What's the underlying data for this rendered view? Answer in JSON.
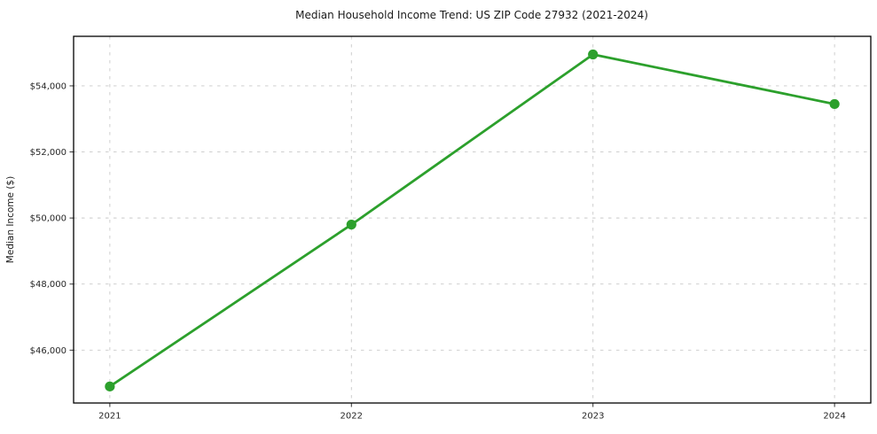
{
  "chart_data": {
    "type": "line",
    "title": "Median Household Income Trend: US ZIP Code 27932 (2021-2024)",
    "xlabel": "",
    "ylabel": "Median Income ($)",
    "categories": [
      "2021",
      "2022",
      "2023",
      "2024"
    ],
    "series": [
      {
        "name": "Median Household Income",
        "values": [
          44900,
          49800,
          54950,
          53450
        ]
      }
    ],
    "y_ticks": [
      46000,
      48000,
      50000,
      52000,
      54000
    ],
    "y_tick_labels": [
      "$46,000",
      "$48,000",
      "$50,000",
      "$52,000",
      "$54,000"
    ],
    "ylim": [
      44400,
      55500
    ],
    "grid": true,
    "grid_style": "dashed",
    "legend": "none",
    "marker": "circle",
    "colors": {
      "line": "#2ca02c",
      "marker": "#2ca02c",
      "grid": "#c9c9c9",
      "spine": "#000000",
      "tick": "#333333",
      "text": "#1a1a1a",
      "background": "#ffffff"
    }
  }
}
